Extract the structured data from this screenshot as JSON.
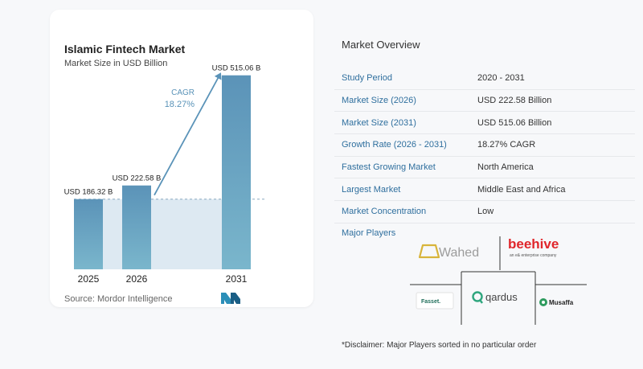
{
  "chart": {
    "title": "Islamic Fintech Market",
    "subtitle": "Market Size in USD Billion",
    "source": "Source: Mordor Intelligence"
  },
  "chart_data": {
    "type": "bar",
    "title": "Islamic Fintech Market",
    "subtitle": "Market Size in USD Billion",
    "categories": [
      "2025",
      "2026",
      "2031"
    ],
    "values": [
      186.32,
      222.58,
      515.06
    ],
    "data_labels": [
      "USD 186.32 B",
      "USD 222.58 B",
      "USD 515.06 B"
    ],
    "cagr_label": "CAGR",
    "cagr_value": "18.27%",
    "ylim": [
      0,
      540
    ],
    "grid": false,
    "colors": {
      "bar_top": "#5b93b8",
      "bar_bottom": "#7ab6cc",
      "area": "#dde9f2",
      "arrow": "#5a93b8",
      "cagr_text": "#5a93b8"
    }
  },
  "overview": {
    "title": "Market Overview",
    "rows": [
      {
        "key": "Study Period",
        "value": "2020 - 2031"
      },
      {
        "key": "Market Size (2026)",
        "value": "USD 222.58 Billion"
      },
      {
        "key": "Market Size (2031)",
        "value": "USD 515.06 Billion"
      },
      {
        "key": "Growth Rate (2026 - 2031)",
        "value": "18.27% CAGR"
      },
      {
        "key": "Fastest Growing Market",
        "value": "North America"
      },
      {
        "key": "Largest Market",
        "value": "Middle East and Africa"
      },
      {
        "key": "Market Concentration",
        "value": "Low"
      }
    ]
  },
  "players": {
    "title": "Major Players",
    "wahed": "Wahed",
    "beehive": "beehive",
    "beehive_tag": "an e& enterprise company",
    "fasset": "Fasset.",
    "qardus": "qardus",
    "musaffa": "Musaffa"
  },
  "disclaimer": "*Disclaimer: Major Players sorted in no particular order"
}
